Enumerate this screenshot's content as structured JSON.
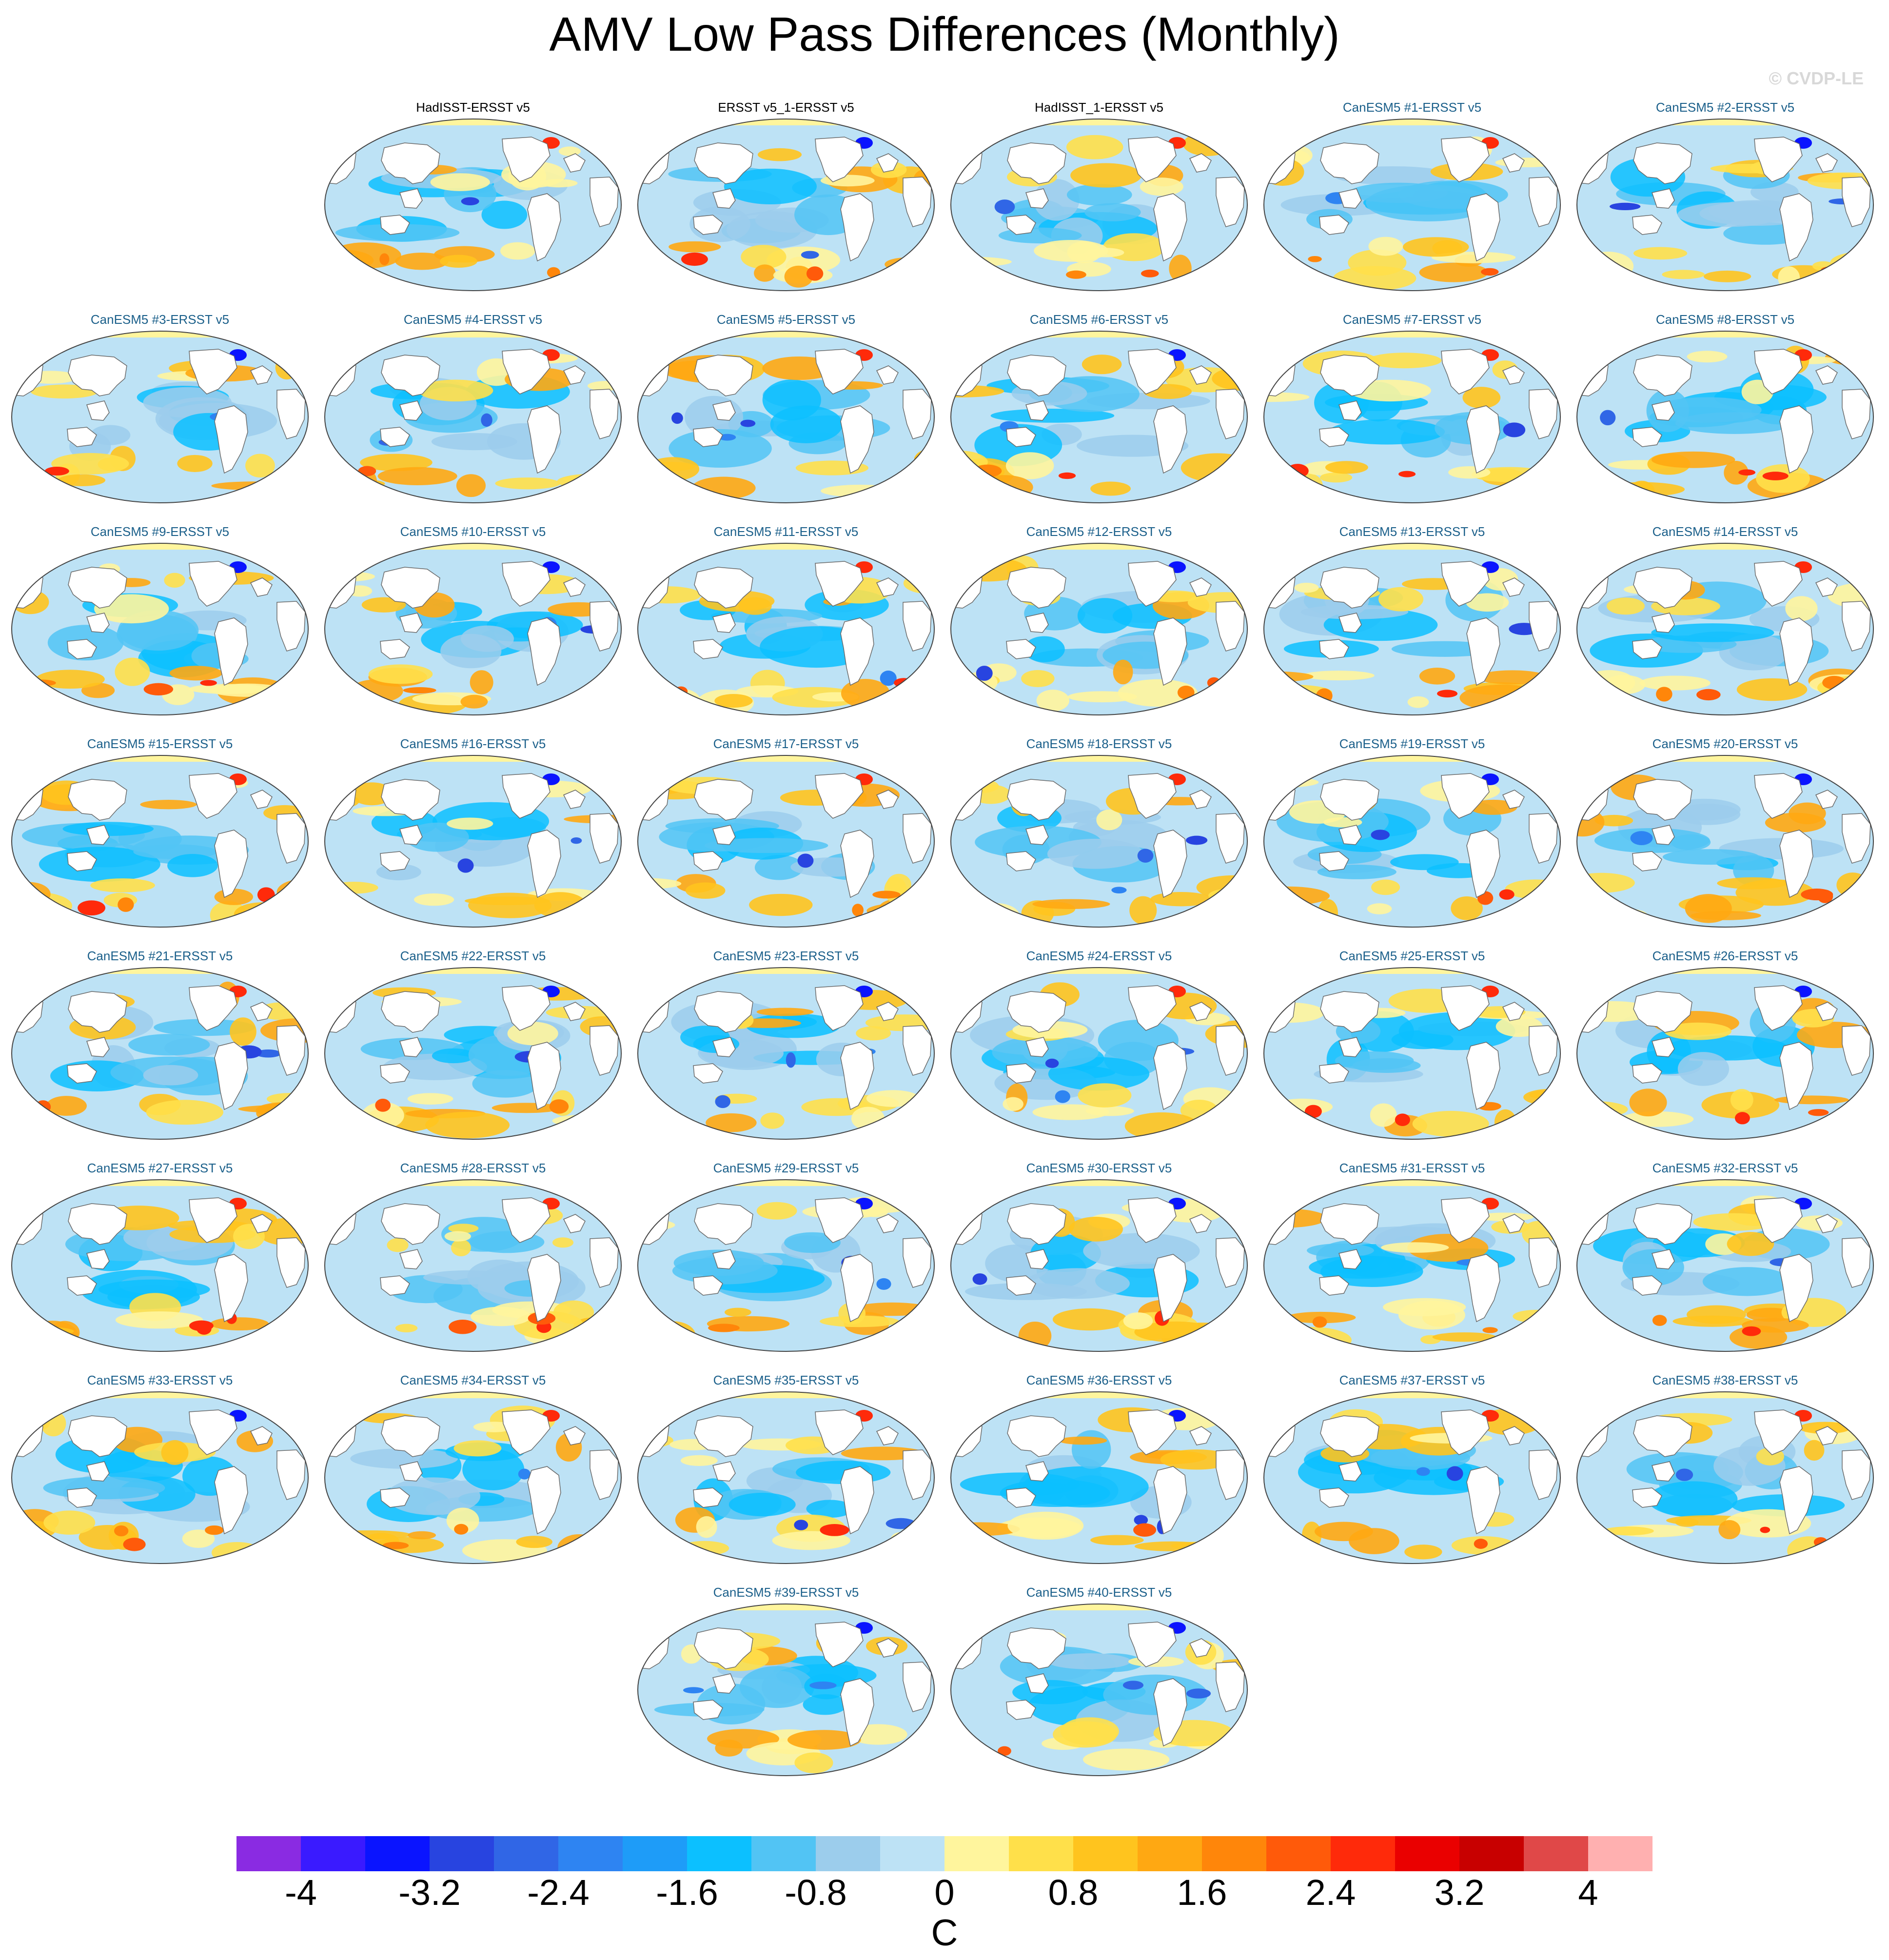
{
  "title": "AMV Low Pass Differences (Monthly)",
  "copyright": "© CVDP-LE",
  "panels": [
    {
      "label": "HadISST-ERSST v5",
      "color": "#000000"
    },
    {
      "label": "ERSST v5_1-ERSST v5",
      "color": "#000000"
    },
    {
      "label": "HadISST_1-ERSST v5",
      "color": "#000000"
    },
    {
      "label": "CanESM5 #1-ERSST v5",
      "color": "#1a5f8a"
    },
    {
      "label": "CanESM5 #2-ERSST v5",
      "color": "#1a5f8a"
    },
    {
      "label": "CanESM5 #3-ERSST v5",
      "color": "#1a5f8a"
    },
    {
      "label": "CanESM5 #4-ERSST v5",
      "color": "#1a5f8a"
    },
    {
      "label": "CanESM5 #5-ERSST v5",
      "color": "#1a5f8a"
    },
    {
      "label": "CanESM5 #6-ERSST v5",
      "color": "#1a5f8a"
    },
    {
      "label": "CanESM5 #7-ERSST v5",
      "color": "#1a5f8a"
    },
    {
      "label": "CanESM5 #8-ERSST v5",
      "color": "#1a5f8a"
    },
    {
      "label": "CanESM5 #9-ERSST v5",
      "color": "#1a5f8a"
    },
    {
      "label": "CanESM5 #10-ERSST v5",
      "color": "#1a5f8a"
    },
    {
      "label": "CanESM5 #11-ERSST v5",
      "color": "#1a5f8a"
    },
    {
      "label": "CanESM5 #12-ERSST v5",
      "color": "#1a5f8a"
    },
    {
      "label": "CanESM5 #13-ERSST v5",
      "color": "#1a5f8a"
    },
    {
      "label": "CanESM5 #14-ERSST v5",
      "color": "#1a5f8a"
    },
    {
      "label": "CanESM5 #15-ERSST v5",
      "color": "#1a5f8a"
    },
    {
      "label": "CanESM5 #16-ERSST v5",
      "color": "#1a5f8a"
    },
    {
      "label": "CanESM5 #17-ERSST v5",
      "color": "#1a5f8a"
    },
    {
      "label": "CanESM5 #18-ERSST v5",
      "color": "#1a5f8a"
    },
    {
      "label": "CanESM5 #19-ERSST v5",
      "color": "#1a5f8a"
    },
    {
      "label": "CanESM5 #20-ERSST v5",
      "color": "#1a5f8a"
    },
    {
      "label": "CanESM5 #21-ERSST v5",
      "color": "#1a5f8a"
    },
    {
      "label": "CanESM5 #22-ERSST v5",
      "color": "#1a5f8a"
    },
    {
      "label": "CanESM5 #23-ERSST v5",
      "color": "#1a5f8a"
    },
    {
      "label": "CanESM5 #24-ERSST v5",
      "color": "#1a5f8a"
    },
    {
      "label": "CanESM5 #25-ERSST v5",
      "color": "#1a5f8a"
    },
    {
      "label": "CanESM5 #26-ERSST v5",
      "color": "#1a5f8a"
    },
    {
      "label": "CanESM5 #27-ERSST v5",
      "color": "#1a5f8a"
    },
    {
      "label": "CanESM5 #28-ERSST v5",
      "color": "#1a5f8a"
    },
    {
      "label": "CanESM5 #29-ERSST v5",
      "color": "#1a5f8a"
    },
    {
      "label": "CanESM5 #30-ERSST v5",
      "color": "#1a5f8a"
    },
    {
      "label": "CanESM5 #31-ERSST v5",
      "color": "#1a5f8a"
    },
    {
      "label": "CanESM5 #32-ERSST v5",
      "color": "#1a5f8a"
    },
    {
      "label": "CanESM5 #33-ERSST v5",
      "color": "#1a5f8a"
    },
    {
      "label": "CanESM5 #34-ERSST v5",
      "color": "#1a5f8a"
    },
    {
      "label": "CanESM5 #35-ERSST v5",
      "color": "#1a5f8a"
    },
    {
      "label": "CanESM5 #36-ERSST v5",
      "color": "#1a5f8a"
    },
    {
      "label": "CanESM5 #37-ERSST v5",
      "color": "#1a5f8a"
    },
    {
      "label": "CanESM5 #38-ERSST v5",
      "color": "#1a5f8a"
    },
    {
      "label": "CanESM5 #39-ERSST v5",
      "color": "#1a5f8a"
    },
    {
      "label": "CanESM5 #40-ERSST v5",
      "color": "#1a5f8a"
    }
  ],
  "colorbar": {
    "unit": "C",
    "colors": [
      "#8a2be2",
      "#3a1aff",
      "#0a14ff",
      "#2844e0",
      "#3066e6",
      "#2e84f2",
      "#1e9cf8",
      "#0cc0ff",
      "#52c4f4",
      "#9ccdec",
      "#bde2f5",
      "#fff59d",
      "#ffe04a",
      "#ffc41e",
      "#ffa812",
      "#ff860a",
      "#ff5a0a",
      "#ff2a0a",
      "#ea0000",
      "#c80000",
      "#e04848",
      "#ffb0b0"
    ],
    "tick_labels": [
      "-4",
      "-3.2",
      "-2.4",
      "-1.6",
      "-0.8",
      "0",
      "0.8",
      "1.6",
      "2.4",
      "3.2",
      "4"
    ]
  }
}
